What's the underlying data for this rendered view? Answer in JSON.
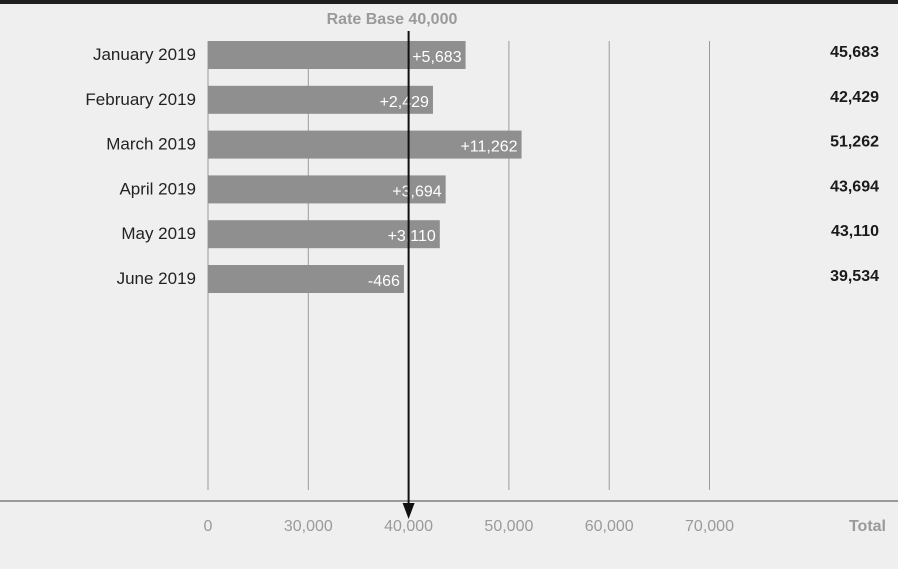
{
  "chart_data": {
    "type": "bar",
    "orientation": "horizontal",
    "categories": [
      "January 2019",
      "February 2019",
      "March 2019",
      "April 2019",
      "May 2019",
      "June 2019"
    ],
    "values": [
      45683,
      42429,
      51262,
      43694,
      43110,
      39534
    ],
    "delta_labels": [
      "+5,683",
      "+2,429",
      "+11,262",
      "+3,694",
      "+3,110",
      "-466"
    ],
    "total_labels": [
      "45,683",
      "42,429",
      "51,262",
      "43,694",
      "43,110",
      "39,534"
    ],
    "reference_line": {
      "value": 40000,
      "label": "Rate Base 40,000"
    },
    "x_ticks": [
      0,
      30000,
      40000,
      50000,
      60000,
      70000
    ],
    "x_tick_labels": [
      "0",
      "30,000",
      "40,000",
      "50,000",
      "60,000",
      "70,000"
    ],
    "total_header": "Total",
    "grid": true,
    "colors": {
      "bar": "#8f8f90",
      "background": "#efefef",
      "grid": "#9a9a9a",
      "reference_line": "#111111",
      "top_rule": "#1e1e1e"
    }
  }
}
